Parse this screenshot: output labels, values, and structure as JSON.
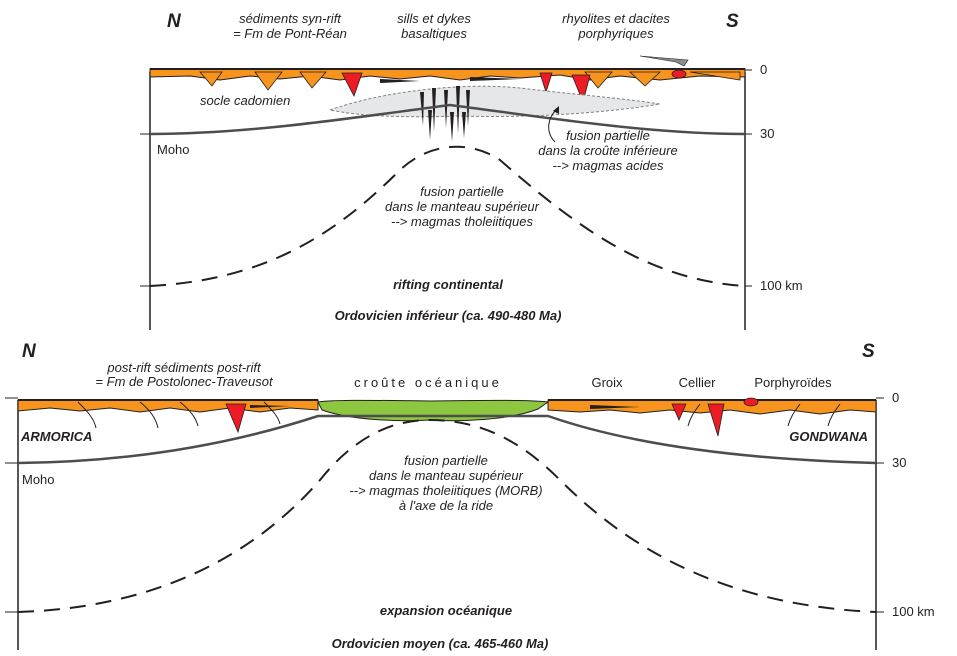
{
  "top": {
    "north": "N",
    "south": "S",
    "labels": {
      "sed_line1": "sédiments syn-rift",
      "sed_line2": "= Fm de Pont-Réan",
      "sills_line1": "sills et dykes",
      "sills_line2": "basaltiques",
      "rhyo_line1": "rhyolites et dacites",
      "rhyo_line2": "porphyriques",
      "socle": "socle cadomien",
      "moho": "Moho",
      "crust_line1": "fusion partielle",
      "crust_line2": "dans la croûte inférieure",
      "crust_line3": "--> magmas acides",
      "mantle_line1": "fusion partielle",
      "mantle_line2": "dans le manteau supérieur",
      "mantle_line3": "--> magmas tholeiitiques",
      "stage": "rifting continental",
      "period": "Ordovicien  inférieur (ca. 490-480 Ma)"
    },
    "depths": [
      "0",
      "30",
      "100 km"
    ]
  },
  "bottom": {
    "north": "N",
    "south": "S",
    "labels": {
      "sed_line1": "post-rift sédiments post-rift",
      "sed_line2": "= Fm de Postolonec-Traveusot",
      "ocean": "croûte océanique",
      "groix": "Groix",
      "cellier": "Cellier",
      "porph": "Porphyroïdes",
      "armorica": "ARMORICA",
      "gondwana": "GONDWANA",
      "moho": "Moho",
      "mantle_line1": "fusion partielle",
      "mantle_line2": "dans le manteau supérieur",
      "mantle_line3": "--> magmas tholeiitiques (MORB)",
      "mantle_line4": "à l'axe de la ride",
      "stage": "expansion océanique",
      "period": "Ordovicien moyen  (ca. 465-460 Ma)"
    },
    "depths": [
      "0",
      "30",
      "100 km"
    ]
  },
  "colors": {
    "sediment": "#f7941d",
    "magma": "#ed1c24",
    "ocean": "#8dc63f",
    "line": "#231f20"
  }
}
